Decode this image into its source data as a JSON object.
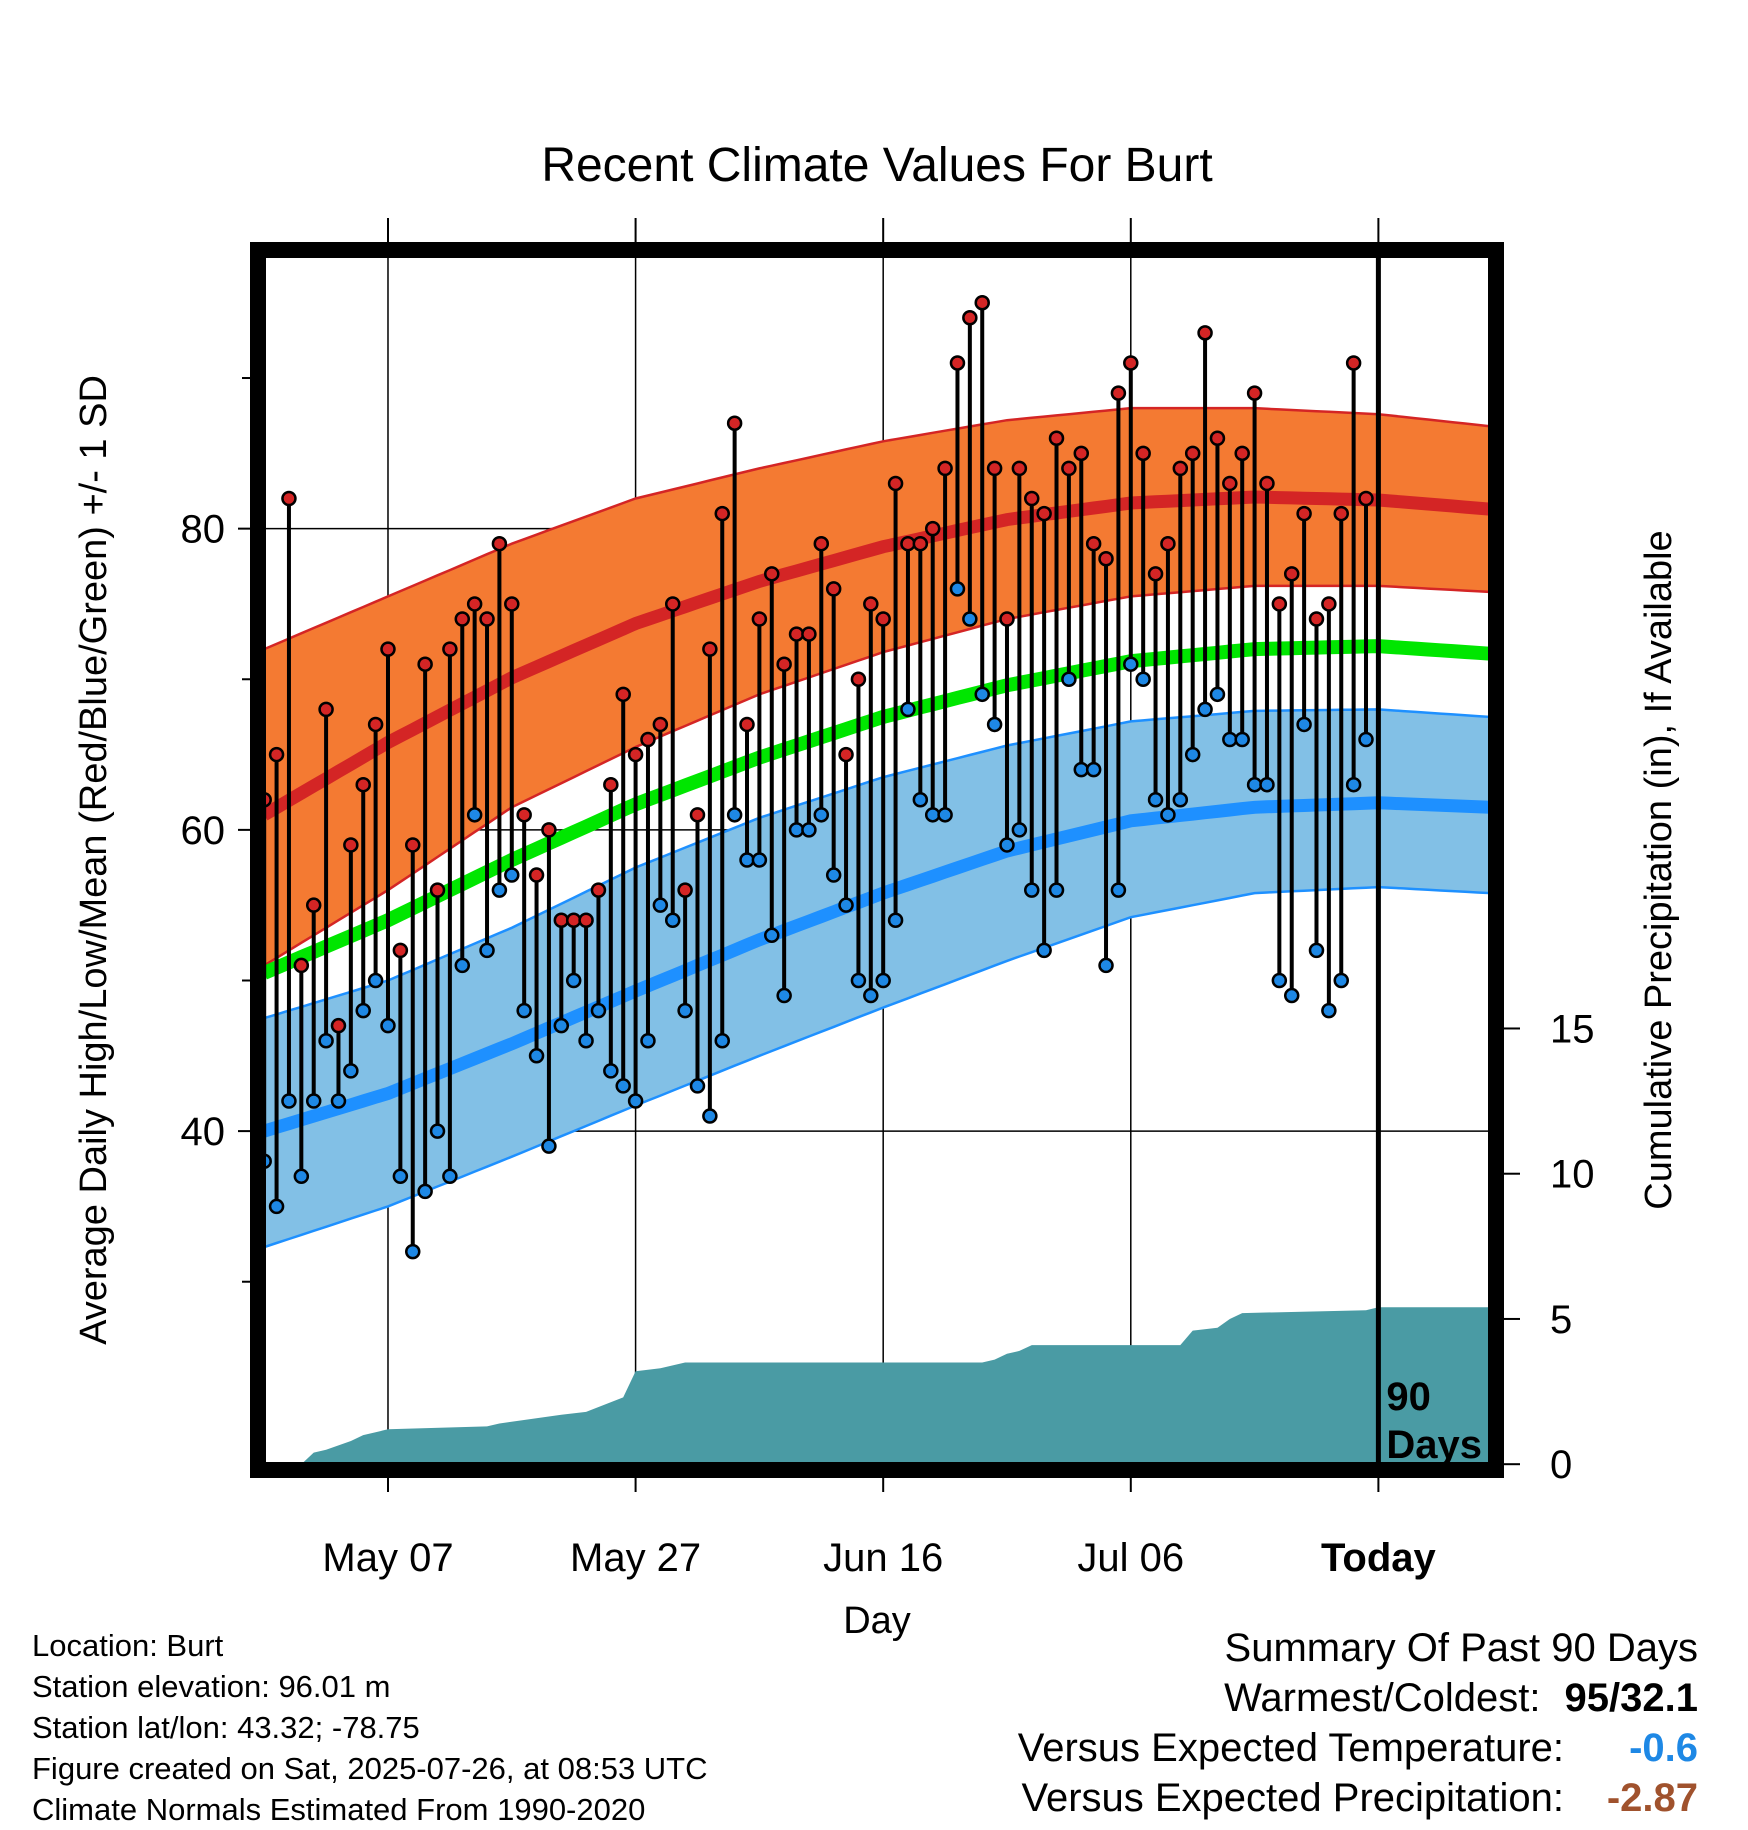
{
  "chart_data": {
    "type": "line",
    "title": "Recent Climate Values For Burt",
    "xlabel": "Day",
    "ylabel": "Average Daily High/Low/Mean (Red/Blue/Green) +/- 1 SD",
    "y2label": "Cumulative Precipitation (in), If Available",
    "x_tick_labels": [
      "May 07",
      "May 27",
      "Jun 16",
      "Jul 06",
      "Today"
    ],
    "x_tick_days": [
      10,
      30,
      50,
      70,
      90
    ],
    "xlim": [
      -0.5,
      99.5
    ],
    "ylim": [
      17.5,
      98.5
    ],
    "y_ticks": [
      40,
      60,
      80
    ],
    "y2lim": [
      -0.2,
      41.8
    ],
    "y2_ticks": [
      0,
      5,
      10,
      15
    ],
    "today_day": 90,
    "today_label": "90 Days",
    "grid": true,
    "colors": {
      "high_band": "#f47a32",
      "high_line": "#d42525",
      "low_band": "#82c0e6",
      "low_line": "#1e90ff",
      "low_edge": "#1e90ff",
      "mean_line": "#00e600",
      "precip": "#4a9ba4",
      "high_point": "#d42525",
      "low_point": "#1e88e5"
    },
    "normal_days": [
      0,
      10,
      20,
      30,
      40,
      50,
      60,
      70,
      80,
      90,
      99
    ],
    "normal_high": [
      61.0,
      65.8,
      70.1,
      73.7,
      76.5,
      78.8,
      80.6,
      81.7,
      82.1,
      81.9,
      81.3
    ],
    "normal_high_upper": [
      72.0,
      75.5,
      79.0,
      82.0,
      84.0,
      85.8,
      87.2,
      88.0,
      88.0,
      87.6,
      86.8
    ],
    "normal_high_lower": [
      51.0,
      56.0,
      61.5,
      65.5,
      69.0,
      71.8,
      74.0,
      75.5,
      76.2,
      76.2,
      75.8
    ],
    "normal_mean": [
      50.5,
      54.0,
      58.0,
      61.7,
      64.8,
      67.5,
      69.6,
      71.2,
      72.0,
      72.2,
      71.7
    ],
    "normal_low": [
      40.0,
      42.5,
      45.8,
      49.3,
      52.7,
      55.8,
      58.6,
      60.6,
      61.5,
      61.8,
      61.5
    ],
    "normal_low_upper": [
      47.5,
      50.0,
      53.5,
      57.5,
      60.8,
      63.5,
      65.6,
      67.2,
      67.9,
      68.0,
      67.5
    ],
    "normal_low_lower": [
      32.3,
      35.0,
      38.3,
      41.7,
      45.0,
      48.2,
      51.3,
      54.2,
      55.8,
      56.2,
      55.8
    ],
    "daily_high": [
      62,
      65,
      82,
      51,
      55,
      68,
      47,
      59,
      63,
      67,
      72,
      52,
      59,
      71,
      56,
      72,
      74,
      75,
      74,
      79,
      75,
      61,
      57,
      60,
      54,
      54,
      54,
      56,
      63,
      69,
      65,
      66,
      67,
      75,
      56,
      61,
      72,
      81,
      87,
      67,
      74,
      77,
      71,
      73,
      73,
      79,
      76,
      65,
      70,
      75,
      74,
      83,
      79,
      79,
      80,
      84,
      91,
      94,
      95,
      84,
      74,
      84,
      82,
      81,
      86,
      84,
      85,
      79,
      78,
      89,
      91,
      85,
      77,
      79,
      84,
      85,
      93,
      86,
      83,
      85,
      89,
      83,
      75,
      77,
      81,
      74,
      75,
      81,
      91,
      82
    ],
    "daily_low": [
      38,
      35,
      42,
      37,
      42,
      46,
      42,
      44,
      48,
      50,
      47,
      37,
      32,
      36,
      40,
      37,
      51,
      61,
      52,
      56,
      57,
      48,
      45,
      39,
      47,
      50,
      46,
      48,
      44,
      43,
      42,
      46,
      55,
      54,
      48,
      43,
      41,
      46,
      61,
      58,
      58,
      53,
      49,
      60,
      60,
      61,
      57,
      55,
      50,
      49,
      50,
      54,
      68,
      62,
      61,
      61,
      76,
      74,
      69,
      67,
      59,
      60,
      56,
      52,
      56,
      70,
      64,
      64,
      51,
      56,
      71,
      70,
      62,
      61,
      62,
      65,
      68,
      69,
      66,
      66,
      63,
      63,
      50,
      49,
      67,
      52,
      48,
      50,
      63,
      66
    ],
    "precip_days": [
      0,
      3,
      4,
      5,
      7,
      8,
      9,
      10,
      18,
      19,
      24,
      26,
      29,
      30,
      32,
      34,
      58,
      59,
      60,
      61,
      62,
      74,
      75,
      77,
      78,
      79,
      89,
      90,
      99
    ],
    "precip_cum": [
      0.0,
      0.0,
      0.4,
      0.5,
      0.8,
      1.0,
      1.1,
      1.2,
      1.3,
      1.4,
      1.7,
      1.8,
      2.3,
      3.2,
      3.3,
      3.5,
      3.5,
      3.6,
      3.8,
      3.9,
      4.1,
      4.1,
      4.6,
      4.7,
      5.0,
      5.2,
      5.3,
      5.4,
      5.4
    ]
  },
  "info": {
    "location": "Location: Burt",
    "elevation": "Station elevation: 96.01 m",
    "latlon": "Station lat/lon: 43.32; -78.75",
    "created": "Figure created on Sat, 2025-07-26, at 08:53 UTC",
    "normals": "Climate Normals Estimated From 1990-2020"
  },
  "summary": {
    "heading": "Summary Of Past 90 Days",
    "warm_cold_label": "Warmest/Coldest:",
    "warm_cold_value": "95/32.1",
    "temp_label": "Versus Expected Temperature:",
    "temp_value": "-0.6",
    "temp_color": "#1e88e5",
    "precip_label": "Versus Expected Precipitation:",
    "precip_value": "-2.87",
    "precip_color": "#a0522d"
  }
}
